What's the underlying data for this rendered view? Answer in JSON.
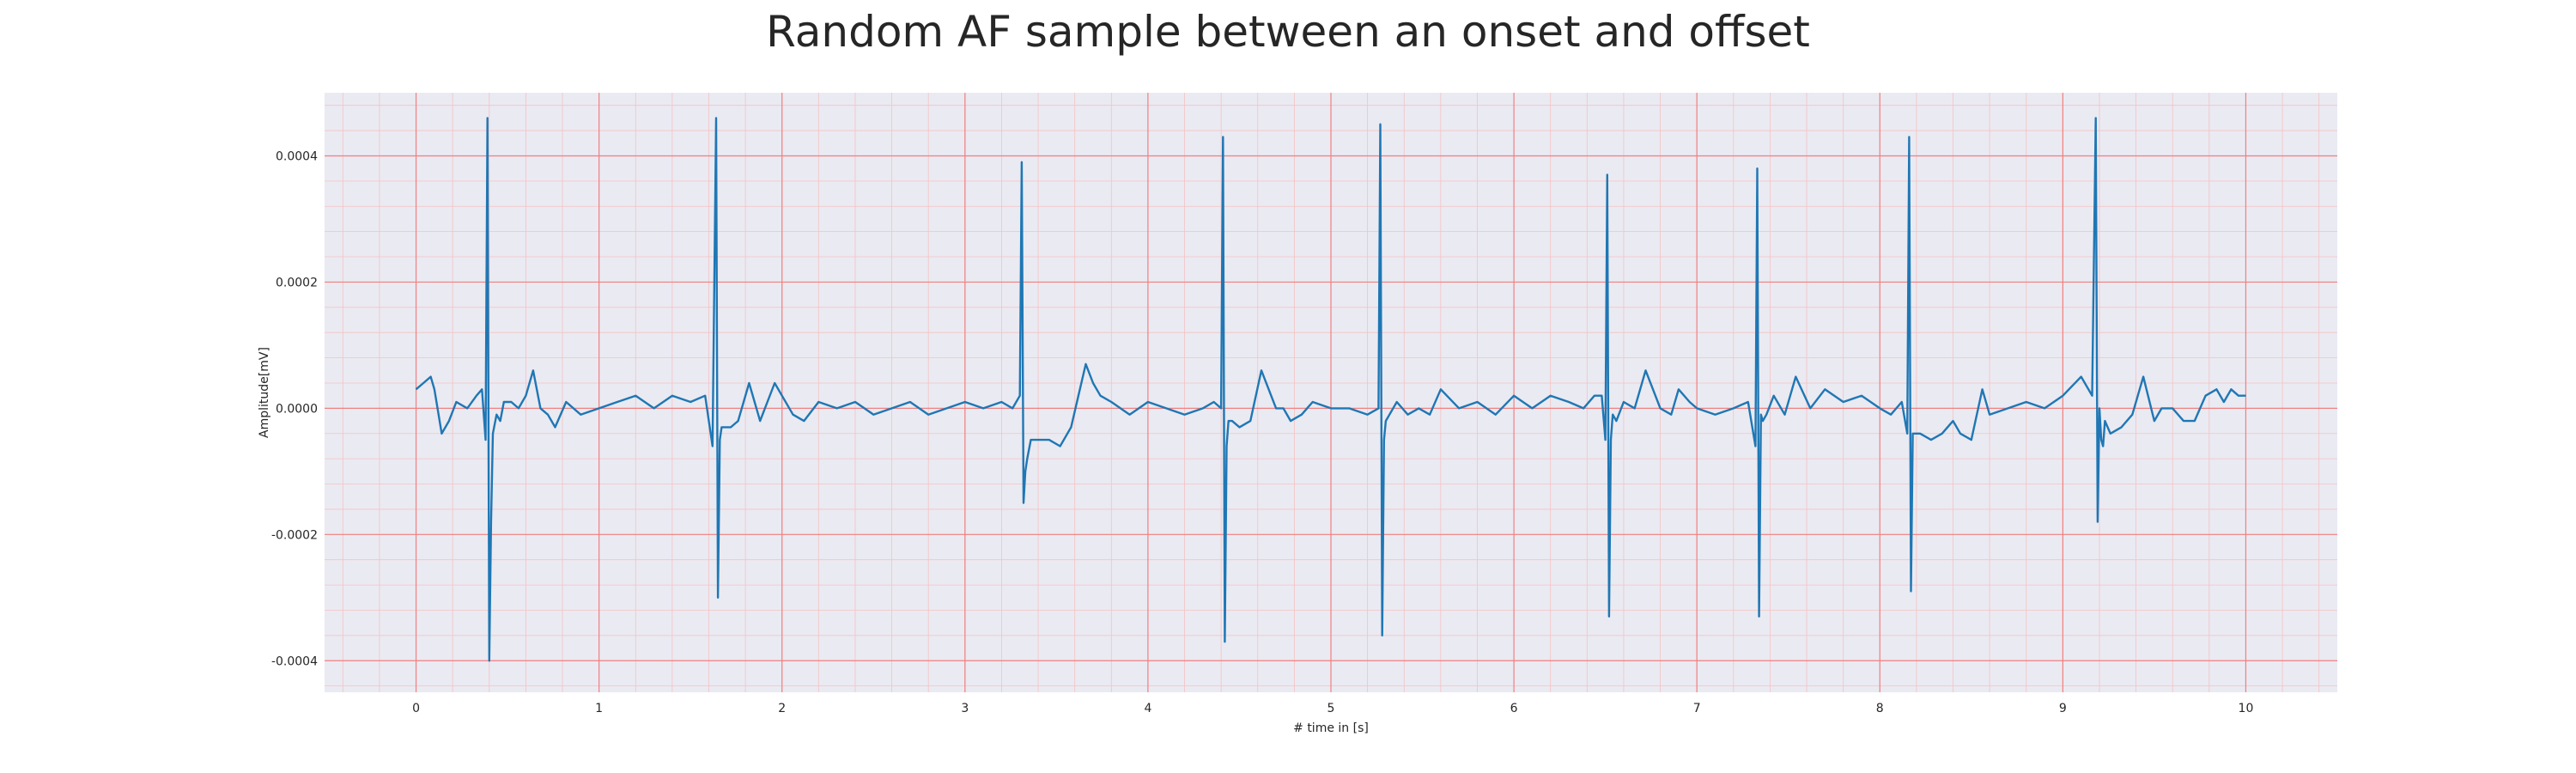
{
  "chart_data": {
    "type": "line",
    "title": "Random AF sample between an onset and offset",
    "xlabel": "# time in [s]",
    "ylabel": "Amplitude[mV]",
    "xlim": [
      -0.5,
      10.5
    ],
    "ylim": [
      -0.00045,
      0.0005
    ],
    "xticks": [
      0,
      1,
      2,
      3,
      4,
      5,
      6,
      7,
      8,
      9,
      10
    ],
    "xtick_labels": [
      "0",
      "1",
      "2",
      "3",
      "4",
      "5",
      "6",
      "7",
      "8",
      "9",
      "10"
    ],
    "yticks": [
      -0.0004,
      -0.0002,
      0.0,
      0.0002,
      0.0004
    ],
    "ytick_labels": [
      "-0.0004",
      "-0.0002",
      "0.0000",
      "0.0002",
      "0.0004"
    ],
    "grid": true,
    "minor_grid": true,
    "legend": "none",
    "colors": {
      "line": "#1f77b4",
      "background": "#eaeaf2",
      "major_grid": "#f08080",
      "minor_grid": "#f5c2c2",
      "text": "#262626"
    },
    "series": [
      {
        "x": [
          0.0,
          0.04,
          0.08,
          0.1,
          0.14,
          0.18,
          0.22,
          0.28,
          0.33,
          0.36,
          0.38,
          0.39,
          0.4,
          0.41,
          0.42,
          0.44,
          0.46,
          0.48,
          0.52,
          0.56,
          0.6,
          0.64,
          0.68,
          0.72,
          0.76,
          0.82,
          0.9,
          1.0,
          1.1,
          1.2,
          1.3,
          1.4,
          1.5,
          1.58,
          1.62,
          1.64,
          1.65,
          1.66,
          1.67,
          1.68,
          1.7,
          1.72,
          1.76,
          1.82,
          1.88,
          1.92,
          1.96,
          2.0,
          2.06,
          2.12,
          2.2,
          2.3,
          2.4,
          2.5,
          2.6,
          2.7,
          2.8,
          2.9,
          3.0,
          3.1,
          3.2,
          3.26,
          3.3,
          3.31,
          3.32,
          3.33,
          3.34,
          3.36,
          3.4,
          3.46,
          3.52,
          3.58,
          3.62,
          3.66,
          3.7,
          3.74,
          3.8,
          3.9,
          4.0,
          4.1,
          4.2,
          4.3,
          4.36,
          4.4,
          4.41,
          4.42,
          4.43,
          4.44,
          4.46,
          4.5,
          4.56,
          4.62,
          4.7,
          4.74,
          4.78,
          4.84,
          4.9,
          5.0,
          5.1,
          5.2,
          5.26,
          5.27,
          5.28,
          5.29,
          5.3,
          5.32,
          5.36,
          5.42,
          5.48,
          5.54,
          5.6,
          5.7,
          5.8,
          5.9,
          6.0,
          6.1,
          6.2,
          6.3,
          6.38,
          6.44,
          6.48,
          6.5,
          6.51,
          6.52,
          6.53,
          6.54,
          6.56,
          6.6,
          6.66,
          6.72,
          6.8,
          6.86,
          6.9,
          6.96,
          7.0,
          7.1,
          7.2,
          7.28,
          7.32,
          7.33,
          7.34,
          7.35,
          7.36,
          7.38,
          7.42,
          7.48,
          7.54,
          7.62,
          7.7,
          7.8,
          7.9,
          8.0,
          8.06,
          8.12,
          8.15,
          8.16,
          8.17,
          8.18,
          8.19,
          8.22,
          8.28,
          8.34,
          8.4,
          8.44,
          8.5,
          8.56,
          8.6,
          8.7,
          8.8,
          8.9,
          9.0,
          9.1,
          9.16,
          9.18,
          9.19,
          9.2,
          9.21,
          9.22,
          9.23,
          9.26,
          9.32,
          9.38,
          9.44,
          9.5,
          9.54,
          9.6,
          9.66,
          9.72,
          9.78,
          9.84,
          9.88,
          9.92,
          9.96,
          10.0
        ],
        "y": [
          3e-05,
          4e-05,
          5e-05,
          3e-05,
          -4e-05,
          -2e-05,
          1e-05,
          0.0,
          2e-05,
          3e-05,
          -5e-05,
          0.00046,
          -0.0004,
          -0.00018,
          -4e-05,
          -1e-05,
          -2e-05,
          1e-05,
          1e-05,
          0.0,
          2e-05,
          6e-05,
          0.0,
          -1e-05,
          -3e-05,
          1e-05,
          -1e-05,
          0.0,
          1e-05,
          2e-05,
          0.0,
          2e-05,
          1e-05,
          2e-05,
          -6e-05,
          0.00046,
          -0.0003,
          -5e-05,
          -3e-05,
          -3e-05,
          -3e-05,
          -3e-05,
          -2e-05,
          4e-05,
          -2e-05,
          1e-05,
          4e-05,
          2e-05,
          -1e-05,
          -2e-05,
          1e-05,
          0.0,
          1e-05,
          -1e-05,
          0.0,
          1e-05,
          -1e-05,
          0.0,
          1e-05,
          0.0,
          1e-05,
          0.0,
          2e-05,
          0.00039,
          -0.00015,
          -0.0001,
          -8e-05,
          -5e-05,
          -5e-05,
          -5e-05,
          -6e-05,
          -3e-05,
          2e-05,
          7e-05,
          4e-05,
          2e-05,
          1e-05,
          -1e-05,
          1e-05,
          0.0,
          -1e-05,
          0.0,
          1e-05,
          0.0,
          0.00043,
          -0.00037,
          -6e-05,
          -2e-05,
          -2e-05,
          -3e-05,
          -2e-05,
          6e-05,
          0.0,
          0.0,
          -2e-05,
          -1e-05,
          1e-05,
          0.0,
          0.0,
          -1e-05,
          0.0,
          0.00045,
          -0.00036,
          -5e-05,
          -2e-05,
          -1e-05,
          1e-05,
          -1e-05,
          0.0,
          -1e-05,
          3e-05,
          0.0,
          1e-05,
          -1e-05,
          2e-05,
          0.0,
          2e-05,
          1e-05,
          0.0,
          2e-05,
          2e-05,
          -5e-05,
          0.00037,
          -0.00033,
          -5e-05,
          -1e-05,
          -2e-05,
          1e-05,
          0.0,
          6e-05,
          0.0,
          -1e-05,
          3e-05,
          1e-05,
          0.0,
          -1e-05,
          0.0,
          1e-05,
          -6e-05,
          0.00038,
          -0.00033,
          -1e-05,
          -2e-05,
          -1e-05,
          2e-05,
          -1e-05,
          5e-05,
          0.0,
          3e-05,
          1e-05,
          2e-05,
          0.0,
          -1e-05,
          1e-05,
          -4e-05,
          0.00043,
          -0.00029,
          -4e-05,
          -4e-05,
          -4e-05,
          -5e-05,
          -4e-05,
          -2e-05,
          -4e-05,
          -5e-05,
          3e-05,
          -1e-05,
          0.0,
          1e-05,
          0.0,
          2e-05,
          5e-05,
          2e-05,
          0.00046,
          -0.00018,
          0.0,
          -5e-05,
          -6e-05,
          -2e-05,
          -4e-05,
          -3e-05,
          -1e-05,
          5e-05,
          -2e-05,
          0.0,
          0.0,
          -2e-05,
          -2e-05,
          2e-05,
          3e-05,
          1e-05,
          3e-05,
          2e-05,
          2e-05
        ]
      }
    ]
  }
}
